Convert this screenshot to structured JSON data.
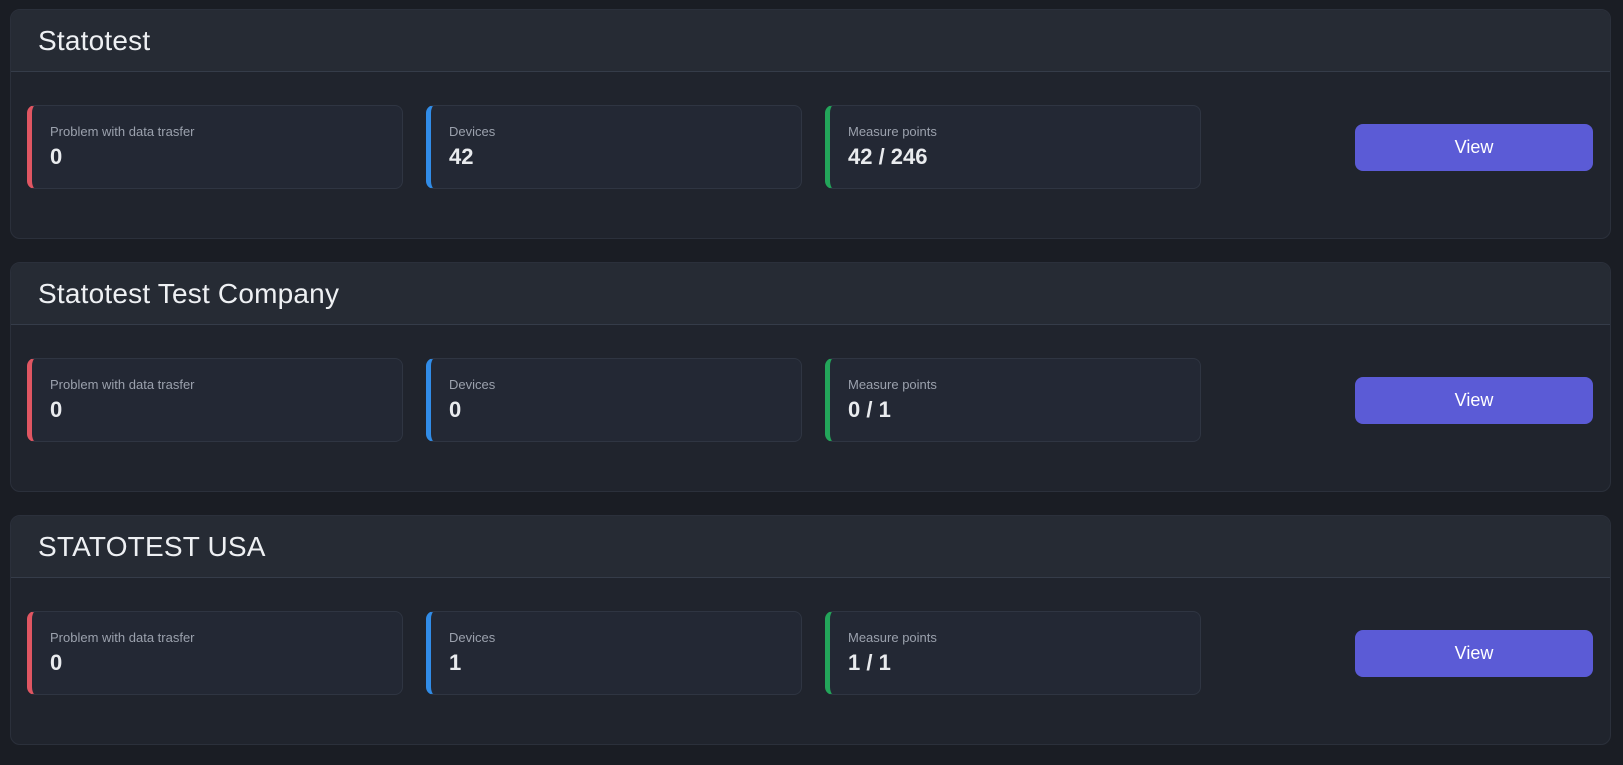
{
  "colors": {
    "accent_red": "#e05662",
    "accent_blue": "#318ce7",
    "accent_green": "#23a55a",
    "button_bg": "#5b5bd6"
  },
  "sections": [
    {
      "title": "Statotest",
      "view_label": "View",
      "cards": [
        {
          "label": "Problem with data trasfer",
          "value": "0",
          "accent": "accent_red"
        },
        {
          "label": "Devices",
          "value": "42",
          "accent": "accent_blue"
        },
        {
          "label": "Measure points",
          "value": "42 / 246",
          "accent": "accent_green"
        }
      ]
    },
    {
      "title": "Statotest Test Company",
      "view_label": "View",
      "cards": [
        {
          "label": "Problem with data trasfer",
          "value": "0",
          "accent": "accent_red"
        },
        {
          "label": "Devices",
          "value": "0",
          "accent": "accent_blue"
        },
        {
          "label": "Measure points",
          "value": "0 / 1",
          "accent": "accent_green"
        }
      ]
    },
    {
      "title": "STATOTEST USA",
      "view_label": "View",
      "cards": [
        {
          "label": "Problem with data trasfer",
          "value": "0",
          "accent": "accent_red"
        },
        {
          "label": "Devices",
          "value": "1",
          "accent": "accent_blue"
        },
        {
          "label": "Measure points",
          "value": "1 / 1",
          "accent": "accent_green"
        }
      ]
    }
  ]
}
